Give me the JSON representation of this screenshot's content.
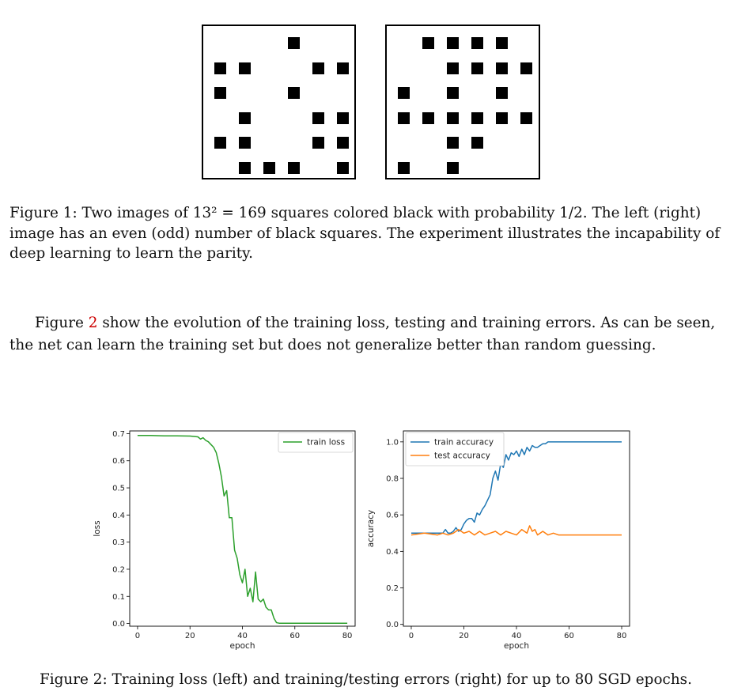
{
  "figure1": {
    "caption_label": "Figure 1:",
    "caption_line1": "Two images of 13² = 169 squares colored black with probability 1/2. The left (right)",
    "caption_line2": "image has an even (odd) number of black squares. The experiment illustrates the incapability of",
    "caption_line3": "deep learning to learn the parity.",
    "left_grid": [
      [
        3,
        0
      ],
      [
        0,
        1
      ],
      [
        1,
        1
      ],
      [
        4,
        1
      ],
      [
        5,
        1
      ],
      [
        0,
        2
      ],
      [
        3,
        2
      ],
      [
        1,
        3
      ],
      [
        4,
        3
      ],
      [
        5,
        3
      ],
      [
        0,
        4
      ],
      [
        1,
        4
      ],
      [
        4,
        4
      ],
      [
        5,
        4
      ],
      [
        1,
        5
      ],
      [
        2,
        5
      ],
      [
        3,
        5
      ],
      [
        5,
        5
      ]
    ],
    "right_grid": [
      [
        1,
        0
      ],
      [
        2,
        0
      ],
      [
        3,
        0
      ],
      [
        4,
        0
      ],
      [
        2,
        1
      ],
      [
        3,
        1
      ],
      [
        4,
        1
      ],
      [
        5,
        1
      ],
      [
        0,
        2
      ],
      [
        2,
        2
      ],
      [
        4,
        2
      ],
      [
        0,
        3
      ],
      [
        1,
        3
      ],
      [
        2,
        3
      ],
      [
        3,
        3
      ],
      [
        4,
        3
      ],
      [
        5,
        3
      ],
      [
        2,
        4
      ],
      [
        3,
        4
      ],
      [
        0,
        5
      ],
      [
        2,
        5
      ]
    ]
  },
  "paragraph": {
    "before_ref": "Figure ",
    "ref": "2",
    "after_ref": " show the evolution of the training loss, testing and training errors. As can be seen, the net can learn the training set but does not generalize better than random guessing."
  },
  "figure2": {
    "caption": "Figure 2: Training loss (left) and training/testing errors (right) for up to 80 SGD epochs."
  },
  "chart_data": [
    {
      "type": "line",
      "xlabel": "epoch",
      "ylabel": "loss",
      "xlim": [
        -3,
        83
      ],
      "ylim": [
        -0.01,
        0.71
      ],
      "xticks": [
        0,
        20,
        40,
        60,
        80
      ],
      "yticks": [
        0.0,
        0.1,
        0.2,
        0.3,
        0.4,
        0.5,
        0.6,
        0.7
      ],
      "legend": "top-right",
      "series": [
        {
          "name": "train loss",
          "color": "#2ca02c",
          "x": [
            0,
            5,
            10,
            15,
            20,
            23,
            24,
            25,
            26,
            27,
            28,
            29,
            30,
            31,
            32,
            33,
            34,
            35,
            36,
            37,
            38,
            39,
            40,
            41,
            42,
            43,
            44,
            45,
            46,
            47,
            48,
            49,
            50,
            51,
            52,
            53,
            54,
            55,
            60,
            70,
            80
          ],
          "y": [
            0.693,
            0.693,
            0.692,
            0.692,
            0.691,
            0.688,
            0.68,
            0.685,
            0.675,
            0.67,
            0.66,
            0.65,
            0.63,
            0.59,
            0.54,
            0.47,
            0.49,
            0.39,
            0.39,
            0.27,
            0.24,
            0.18,
            0.15,
            0.2,
            0.1,
            0.13,
            0.08,
            0.19,
            0.09,
            0.08,
            0.09,
            0.06,
            0.05,
            0.05,
            0.02,
            0.003,
            0.001,
            0.001,
            0.001,
            0.001,
            0.001
          ]
        }
      ]
    },
    {
      "type": "line",
      "xlabel": "epoch",
      "ylabel": "accuracy",
      "xlim": [
        -3,
        83
      ],
      "ylim": [
        -0.01,
        1.06
      ],
      "xticks": [
        0,
        20,
        40,
        60,
        80
      ],
      "yticks": [
        0.0,
        0.2,
        0.4,
        0.6,
        0.8,
        1.0
      ],
      "legend": "top-left",
      "series": [
        {
          "name": "train accuracy",
          "color": "#1f77b4",
          "x": [
            0,
            5,
            10,
            12,
            13,
            14,
            15,
            16,
            17,
            18,
            19,
            20,
            21,
            22,
            23,
            24,
            25,
            26,
            27,
            28,
            29,
            30,
            31,
            32,
            33,
            34,
            35,
            36,
            37,
            38,
            39,
            40,
            41,
            42,
            43,
            44,
            45,
            46,
            47,
            48,
            49,
            50,
            51,
            52,
            53,
            54,
            55,
            60,
            70,
            80
          ],
          "y": [
            0.5,
            0.5,
            0.5,
            0.5,
            0.52,
            0.5,
            0.5,
            0.51,
            0.53,
            0.51,
            0.52,
            0.55,
            0.57,
            0.58,
            0.58,
            0.56,
            0.61,
            0.6,
            0.63,
            0.65,
            0.68,
            0.71,
            0.8,
            0.84,
            0.79,
            0.88,
            0.86,
            0.93,
            0.9,
            0.94,
            0.93,
            0.95,
            0.92,
            0.96,
            0.93,
            0.97,
            0.95,
            0.98,
            0.97,
            0.97,
            0.98,
            0.99,
            0.99,
            1.0,
            1.0,
            1.0,
            1.0,
            1.0,
            1.0,
            1.0
          ]
        },
        {
          "name": "test accuracy",
          "color": "#ff7f0e",
          "x": [
            0,
            5,
            10,
            12,
            14,
            16,
            18,
            20,
            22,
            24,
            26,
            28,
            30,
            32,
            34,
            36,
            38,
            40,
            42,
            44,
            45,
            46,
            47,
            48,
            50,
            52,
            54,
            56,
            58,
            60,
            70,
            80
          ],
          "y": [
            0.49,
            0.5,
            0.49,
            0.5,
            0.49,
            0.5,
            0.52,
            0.5,
            0.51,
            0.49,
            0.51,
            0.49,
            0.5,
            0.51,
            0.49,
            0.51,
            0.5,
            0.49,
            0.52,
            0.5,
            0.54,
            0.51,
            0.52,
            0.49,
            0.51,
            0.49,
            0.5,
            0.49,
            0.49,
            0.49,
            0.49,
            0.49
          ]
        }
      ]
    }
  ]
}
